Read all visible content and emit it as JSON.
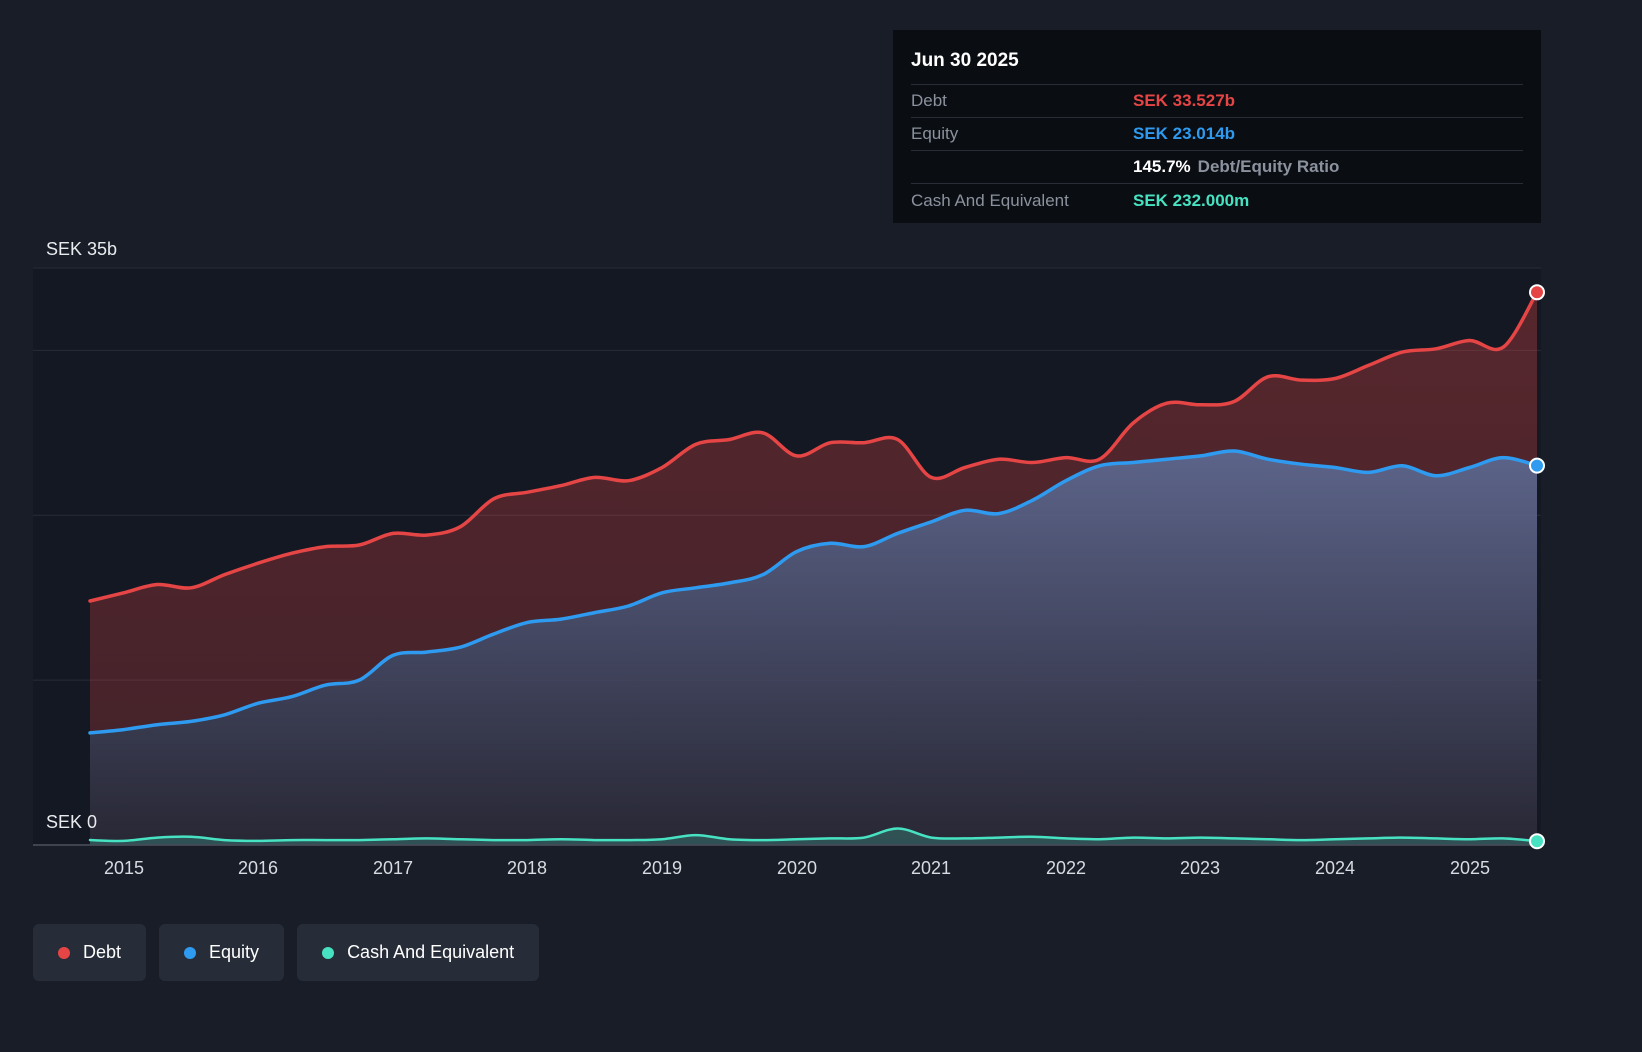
{
  "tooltip": {
    "date": "Jun 30 2025",
    "rows": [
      {
        "label": "Debt",
        "value": "SEK 33.527b",
        "color_key": "debt"
      },
      {
        "label": "Equity",
        "value": "SEK 23.014b",
        "color_key": "equity"
      },
      {
        "label": "",
        "value": "145.7%",
        "suffix": "Debt/Equity Ratio",
        "color_key": "ratio"
      },
      {
        "label": "Cash And Equivalent",
        "value": "SEK 232.000m",
        "color_key": "cash"
      }
    ]
  },
  "axis": {
    "y_top_label": "SEK 35b",
    "y_zero_label": "SEK 0",
    "x_ticks": [
      "2015",
      "2016",
      "2017",
      "2018",
      "2019",
      "2020",
      "2021",
      "2022",
      "2023",
      "2024",
      "2025"
    ]
  },
  "legend": [
    {
      "label": "Debt",
      "key": "debt"
    },
    {
      "label": "Equity",
      "key": "equity"
    },
    {
      "label": "Cash And Equivalent",
      "key": "cash"
    }
  ],
  "colors": {
    "debt": "#e54545",
    "equity": "#2e9bf0",
    "cash": "#47e2c2",
    "ratio": "#ffffff"
  },
  "chart_data": {
    "type": "area",
    "unit": "SEK billions",
    "ylim": [
      0,
      35
    ],
    "xlim": [
      2014.75,
      2025.5
    ],
    "y_gridlines": [
      0,
      10,
      20,
      30,
      35
    ],
    "x_tick_years": [
      2015,
      2016,
      2017,
      2018,
      2019,
      2020,
      2021,
      2022,
      2023,
      2024,
      2025
    ],
    "x": [
      2014.75,
      2015,
      2015.25,
      2015.5,
      2015.75,
      2016,
      2016.25,
      2016.5,
      2016.75,
      2017,
      2017.25,
      2017.5,
      2017.75,
      2018,
      2018.25,
      2018.5,
      2018.75,
      2019,
      2019.25,
      2019.5,
      2019.75,
      2020,
      2020.25,
      2020.5,
      2020.75,
      2021,
      2021.25,
      2021.5,
      2021.75,
      2022,
      2022.25,
      2022.5,
      2022.75,
      2023,
      2023.25,
      2023.5,
      2023.75,
      2024,
      2024.25,
      2024.5,
      2024.75,
      2025,
      2025.25,
      2025.5
    ],
    "series": [
      {
        "name": "Debt",
        "key": "debt",
        "values": [
          14.8,
          15.3,
          15.8,
          15.6,
          16.4,
          17.1,
          17.7,
          18.1,
          18.2,
          18.9,
          18.8,
          19.3,
          21.0,
          21.4,
          21.8,
          22.3,
          22.1,
          22.9,
          24.3,
          24.6,
          25.0,
          23.6,
          24.4,
          24.4,
          24.6,
          22.3,
          22.9,
          23.4,
          23.2,
          23.5,
          23.4,
          25.6,
          26.8,
          26.7,
          26.9,
          28.4,
          28.2,
          28.3,
          29.1,
          29.9,
          30.1,
          30.6,
          30.2,
          33.527
        ]
      },
      {
        "name": "Equity",
        "key": "equity",
        "values": [
          6.8,
          7.0,
          7.3,
          7.5,
          7.9,
          8.6,
          9.0,
          9.7,
          10.0,
          11.5,
          11.7,
          12.0,
          12.8,
          13.5,
          13.7,
          14.1,
          14.5,
          15.3,
          15.6,
          15.9,
          16.4,
          17.8,
          18.3,
          18.1,
          18.9,
          19.6,
          20.3,
          20.1,
          20.9,
          22.1,
          23.0,
          23.2,
          23.4,
          23.6,
          23.9,
          23.4,
          23.1,
          22.9,
          22.6,
          23.0,
          22.4,
          22.9,
          23.5,
          23.014
        ]
      },
      {
        "name": "Cash And Equivalent",
        "key": "cash",
        "values": [
          0.3,
          0.25,
          0.45,
          0.5,
          0.3,
          0.25,
          0.3,
          0.3,
          0.3,
          0.35,
          0.4,
          0.35,
          0.3,
          0.3,
          0.35,
          0.3,
          0.3,
          0.35,
          0.6,
          0.35,
          0.3,
          0.35,
          0.4,
          0.45,
          1.0,
          0.45,
          0.4,
          0.45,
          0.5,
          0.4,
          0.35,
          0.45,
          0.4,
          0.45,
          0.4,
          0.35,
          0.3,
          0.35,
          0.4,
          0.45,
          0.4,
          0.35,
          0.4,
          0.232
        ]
      }
    ]
  }
}
